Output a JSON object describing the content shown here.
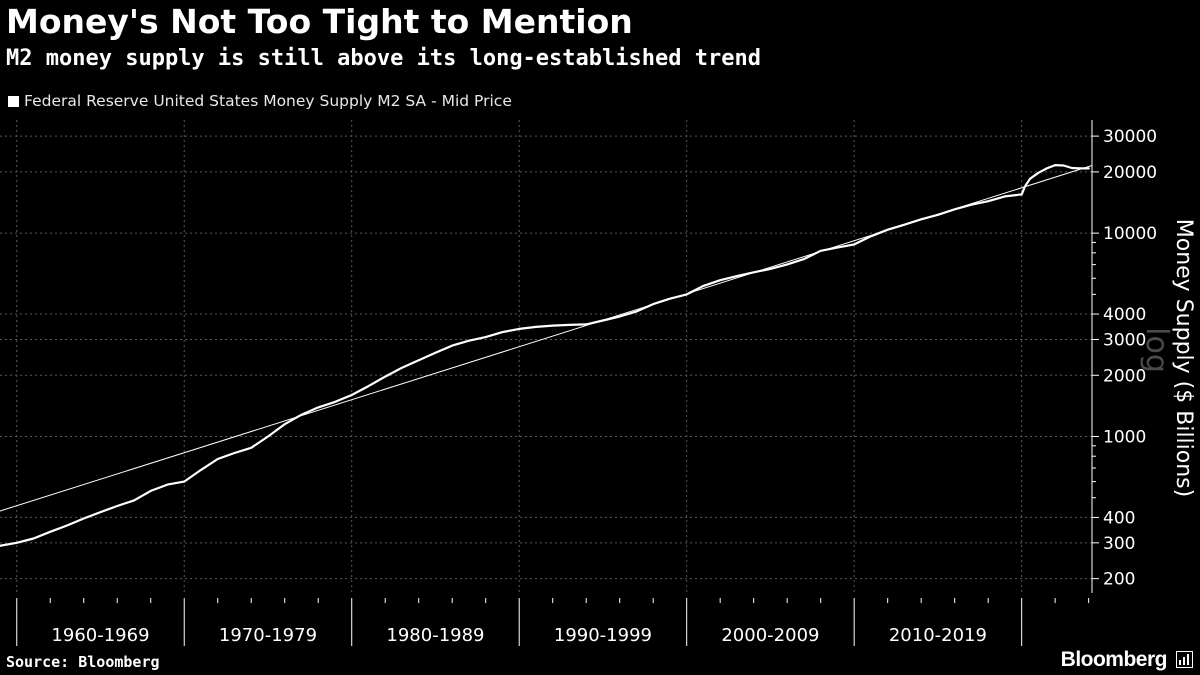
{
  "header": {
    "title": "Money's Not Too Tight to Mention",
    "subtitle": "M2 money supply is still above its long-established trend"
  },
  "legend": {
    "label": "Federal Reserve United States Money Supply M2 SA - Mid Price",
    "color": "#ffffff"
  },
  "footer": {
    "source": "Source: Bloomberg",
    "brand": "Bloomberg",
    "brand_icon": "bar-chart-icon"
  },
  "colors": {
    "background": "#000000",
    "series": "#ffffff",
    "grid": "#5a5a5a",
    "text": "#ffffff"
  },
  "chart_data": {
    "type": "line",
    "scale": "log",
    "title": "Money's Not Too Tight to Mention",
    "subtitle": "M2 money supply is still above its long-established trend",
    "xlabel": "",
    "ylabel": "Money Supply ($ Billions)",
    "scale_label": "log",
    "xlim": [
      1959.0,
      2024.2
    ],
    "ylim": [
      170,
      36000
    ],
    "yticks": [
      200,
      300,
      400,
      1000,
      2000,
      3000,
      4000,
      10000,
      20000,
      30000
    ],
    "ytick_labels": [
      "200",
      "300",
      "400",
      "1000",
      "2000",
      "3000",
      "4000",
      "10000",
      "20000",
      "30000"
    ],
    "x_categories": [
      {
        "label": "1960-1969",
        "start": 1960,
        "end": 1970
      },
      {
        "label": "1970-1979",
        "start": 1970,
        "end": 1980
      },
      {
        "label": "1980-1989",
        "start": 1980,
        "end": 1990
      },
      {
        "label": "1990-1999",
        "start": 1990,
        "end": 2000
      },
      {
        "label": "2000-2009",
        "start": 2000,
        "end": 2010
      },
      {
        "label": "2010-2019",
        "start": 2010,
        "end": 2020
      }
    ],
    "series": [
      {
        "name": "Federal Reserve United States Money Supply M2 SA - Mid Price",
        "x": [
          1959.0,
          1960.0,
          1961.0,
          1962.0,
          1963.0,
          1964.0,
          1965.0,
          1966.0,
          1967.0,
          1968.0,
          1969.0,
          1970.0,
          1971.0,
          1972.0,
          1973.0,
          1974.0,
          1975.0,
          1976.0,
          1977.0,
          1978.0,
          1979.0,
          1980.0,
          1981.0,
          1982.0,
          1983.0,
          1984.0,
          1985.0,
          1986.0,
          1987.0,
          1988.0,
          1989.0,
          1990.0,
          1991.0,
          1992.0,
          1993.0,
          1994.0,
          1995.0,
          1996.0,
          1997.0,
          1998.0,
          1999.0,
          2000.0,
          2001.0,
          2002.0,
          2003.0,
          2004.0,
          2005.0,
          2006.0,
          2007.0,
          2008.0,
          2009.0,
          2010.0,
          2011.0,
          2012.0,
          2013.0,
          2014.0,
          2015.0,
          2016.0,
          2017.0,
          2018.0,
          2019.0,
          2020.0,
          2020.2,
          2020.5,
          2021.0,
          2021.5,
          2022.0,
          2022.5,
          2023.0,
          2023.5,
          2024.0
        ],
        "values": [
          290,
          300,
          315,
          340,
          365,
          395,
          425,
          455,
          485,
          540,
          580,
          600,
          685,
          775,
          830,
          880,
          1000,
          1150,
          1280,
          1390,
          1480,
          1600,
          1770,
          1970,
          2180,
          2370,
          2580,
          2800,
          2960,
          3080,
          3260,
          3380,
          3460,
          3510,
          3540,
          3560,
          3720,
          3890,
          4120,
          4480,
          4760,
          5000,
          5500,
          5870,
          6150,
          6420,
          6670,
          7020,
          7450,
          8190,
          8490,
          8800,
          9650,
          10400,
          11000,
          11700,
          12300,
          13100,
          13800,
          14350,
          15150,
          15500,
          17000,
          18500,
          19800,
          20800,
          21600,
          21500,
          20900,
          20800,
          20800
        ]
      },
      {
        "name": "Trend",
        "x": [
          1959.0,
          2024.2
        ],
        "values": [
          430,
          21500
        ]
      }
    ]
  }
}
